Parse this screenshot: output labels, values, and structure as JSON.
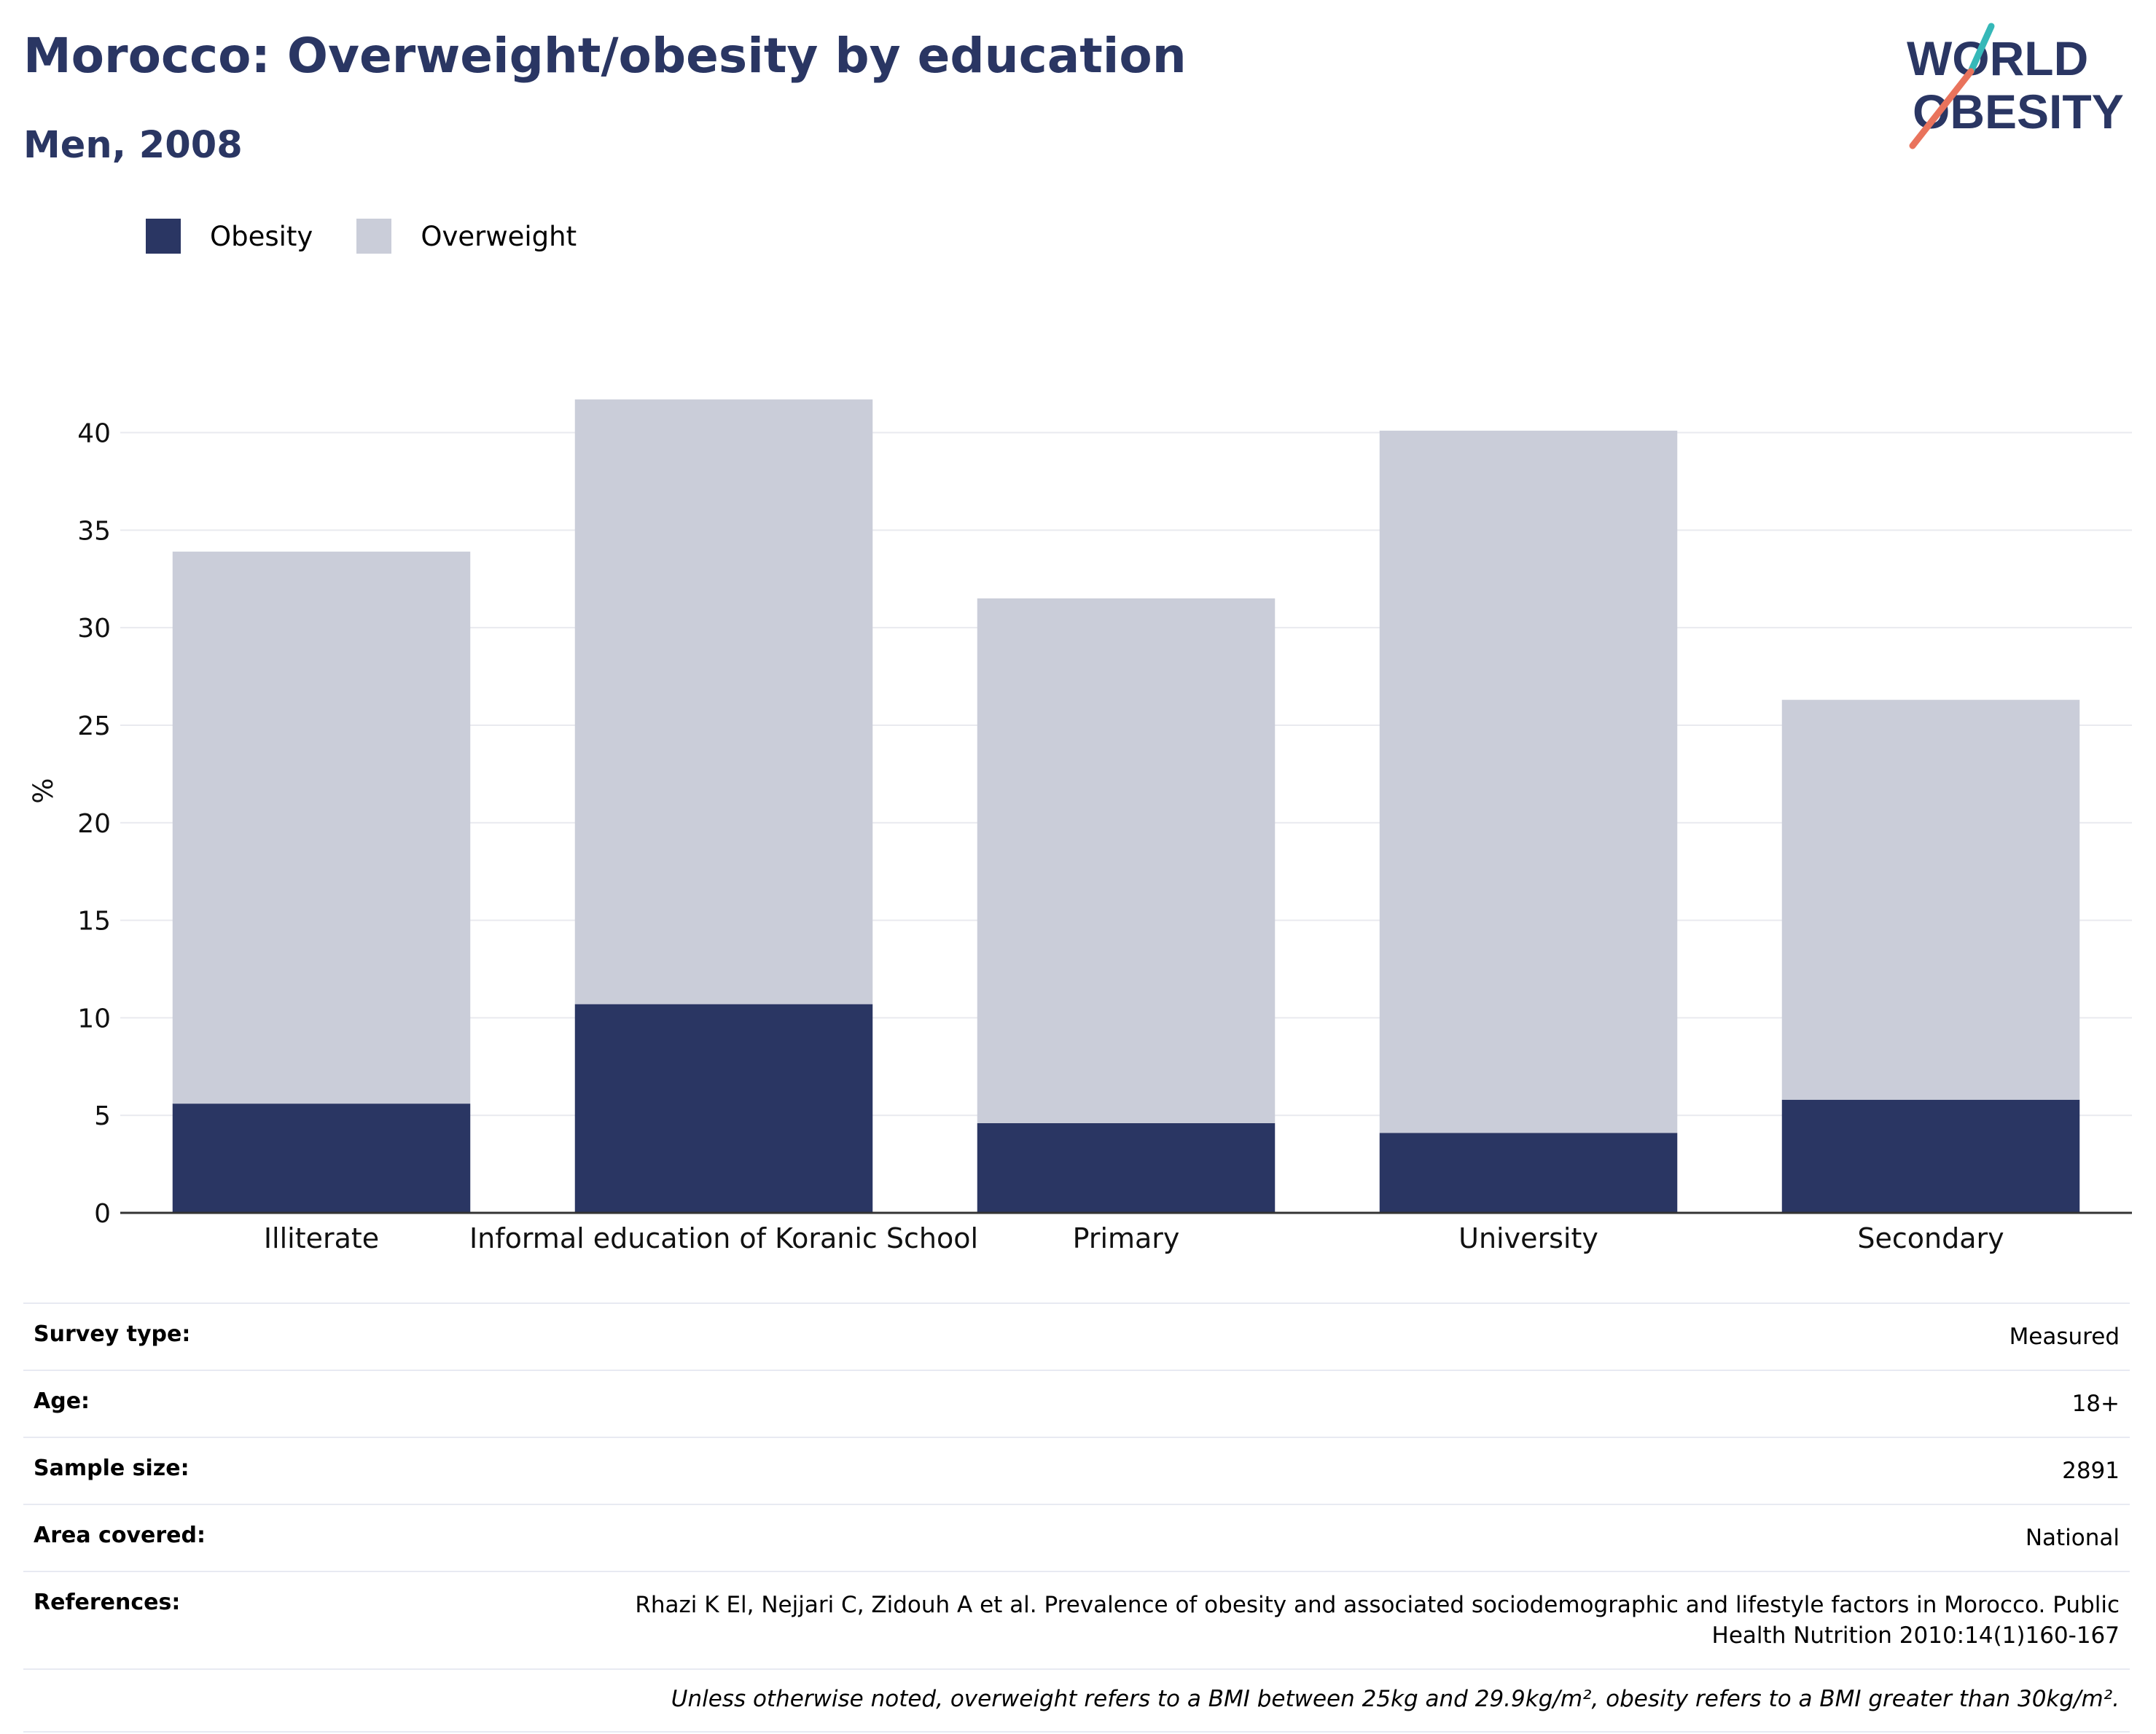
{
  "header": {
    "title": "Morocco: Overweight/obesity by education",
    "subtitle": "Men, 2008",
    "logo_line1": "WORLD",
    "logo_line2": "OBESITY"
  },
  "colors": {
    "obesity": "#2a3663",
    "overweight": "#cacdd9",
    "title": "#2a3663",
    "logo_teal": "#35b8b8",
    "logo_coral": "#e9735c"
  },
  "legend": [
    {
      "label": "Obesity",
      "color": "#2a3663"
    },
    {
      "label": "Overweight",
      "color": "#cacdd9"
    }
  ],
  "chart_data": {
    "type": "bar",
    "stacked": true,
    "categories": [
      "Illiterate",
      "Informal education of Koranic School",
      "Primary",
      "University",
      "Secondary"
    ],
    "series": [
      {
        "name": "Obesity",
        "values": [
          5.6,
          10.7,
          4.6,
          4.1,
          5.8
        ]
      },
      {
        "name": "Overweight",
        "values": [
          28.3,
          31.0,
          26.9,
          36.0,
          20.5
        ]
      }
    ],
    "ylabel": "%",
    "ylim": [
      0,
      42
    ],
    "yticks": [
      0,
      5,
      10,
      15,
      20,
      25,
      30,
      35,
      40
    ],
    "grid": true,
    "legend_position": "top-left"
  },
  "info": [
    {
      "label": "Survey type:",
      "value": "Measured"
    },
    {
      "label": "Age:",
      "value": "18+"
    },
    {
      "label": "Sample size:",
      "value": "2891"
    },
    {
      "label": "Area covered:",
      "value": "National"
    },
    {
      "label": "References:",
      "value": "Rhazi K El, Nejjari C, Zidouh A et al. Prevalence of obesity and associated sociodemographic and lifestyle factors in Morocco. Public Health Nutrition 2010:14(1)160-167"
    }
  ],
  "note": "Unless otherwise noted, overweight refers to a BMI between 25kg and 29.9kg/m², obesity refers to a BMI greater than 30kg/m²."
}
